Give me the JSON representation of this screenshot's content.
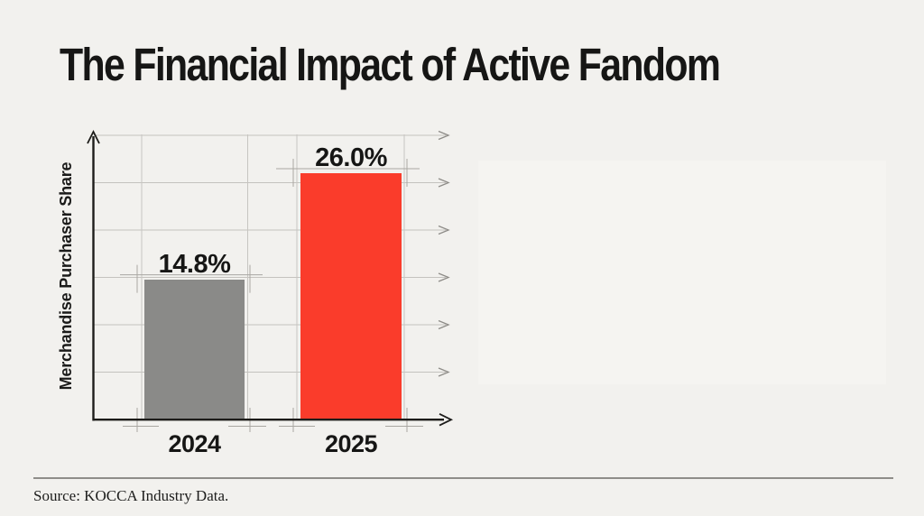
{
  "title": "The Financial Impact of Active Fandom",
  "source_note": "Source: KOCCA Industry Data.",
  "chart_data": {
    "type": "bar",
    "title": "The Financial Impact of Active Fandom",
    "ylabel": "Merchandise Purchaser Share",
    "xlabel": "",
    "categories": [
      "2024",
      "2025"
    ],
    "values": [
      14.8,
      26.0
    ],
    "value_labels": [
      "14.8%",
      "26.0%"
    ],
    "ylim": [
      0,
      30
    ],
    "grid_step": 5,
    "grid": true,
    "legend": false,
    "bar_colors": [
      "#8a8a88",
      "#fa3c2b"
    ],
    "style_note": "blueprint-style grid with right-pointing arrow gridlines and draft crosshair marks at bar corners",
    "source": "Source: KOCCA Industry Data."
  },
  "colors": {
    "background": "#f2f1ee",
    "bar_2024": "#8a8a88",
    "bar_2025": "#fa3c2b",
    "axis": "#1d1c1a",
    "gridline": "#c4c2be",
    "grid_arrow": "#8e8c88",
    "crosshair_mark": "#a9a7a2",
    "text": "#161615"
  }
}
